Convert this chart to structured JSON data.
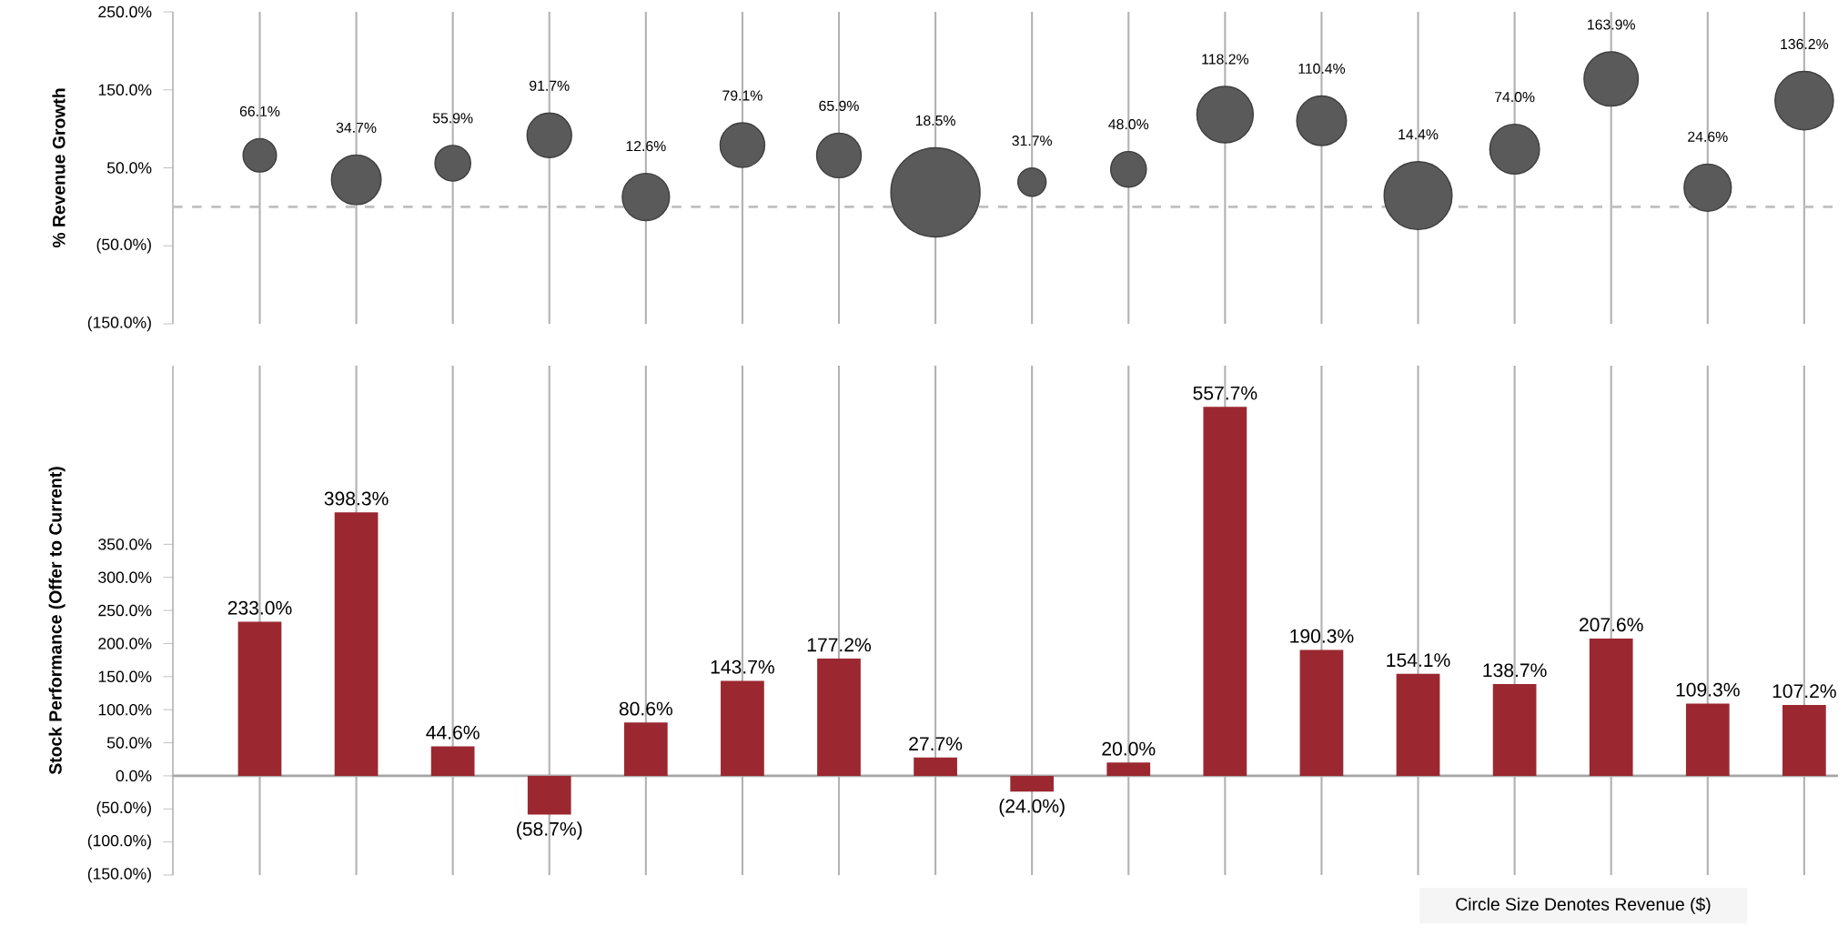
{
  "chart_data": [
    {
      "type": "bubble",
      "ylabel": "% Revenue Growth",
      "categories": [
        null,
        null,
        null,
        null,
        null,
        null,
        null,
        null,
        null,
        null,
        null,
        null,
        null,
        null,
        null,
        null,
        null
      ],
      "values": [
        66.1,
        34.7,
        55.9,
        91.7,
        12.6,
        79.1,
        65.9,
        18.5,
        31.7,
        48.0,
        118.2,
        110.4,
        14.4,
        74.0,
        163.9,
        24.6,
        136.2
      ],
      "sizes": [
        0.14,
        0.31,
        0.16,
        0.25,
        0.28,
        0.25,
        0.25,
        1,
        0.1,
        0.16,
        0.4,
        0.31,
        0.58,
        0.31,
        0.37,
        0.28,
        0.43
      ],
      "value_labels": [
        "66.1%",
        "34.7%",
        "55.9%",
        "91.7%",
        "12.6%",
        "79.1%",
        "65.9%",
        "18.5%",
        "31.7%",
        "48.0%",
        "118.2%",
        "110.4%",
        "14.4%",
        "74.0%",
        "163.9%",
        "24.6%",
        "136.2%"
      ],
      "color": "#5a5a5a",
      "ylim": [
        -150,
        250
      ],
      "yticks": [
        {
          "value": 250,
          "label": "250.0%"
        },
        {
          "value": 150,
          "label": "150.0%"
        },
        {
          "value": 50,
          "label": "50.0%"
        },
        {
          "value": -50,
          "label": "(50.0%)"
        },
        {
          "value": -150,
          "label": "(150.0%)"
        }
      ],
      "grid": "x",
      "ref_lines": [
        {
          "axis": "y",
          "value": 0,
          "color": "#bfbfbf",
          "line_style": "dashed"
        }
      ]
    },
    {
      "type": "bar",
      "ylabel": "Stock Performance (Offer to Current)",
      "categories": [
        null,
        null,
        null,
        null,
        null,
        null,
        null,
        null,
        null,
        null,
        null,
        null,
        null,
        null,
        null,
        null,
        null
      ],
      "values": [
        233.0,
        398.3,
        44.6,
        -58.7,
        80.6,
        143.7,
        177.2,
        27.7,
        -24.0,
        20.0,
        557.7,
        190.3,
        154.1,
        138.7,
        207.6,
        109.3,
        107.2
      ],
      "value_labels": [
        "233.0%",
        "398.3%",
        "44.6%",
        "(58.7%)",
        "80.6%",
        "143.7%",
        "177.2%",
        "27.7%",
        "(24.0%)",
        "20.0%",
        "557.7%",
        "190.3%",
        "154.1%",
        "138.7%",
        "207.6%",
        "109.3%",
        "107.2%"
      ],
      "color": "#9b2830",
      "ylim": [
        -150,
        620
      ],
      "yticks": [
        {
          "value": 350,
          "label": "350.0%"
        },
        {
          "value": 300,
          "label": "300.0%"
        },
        {
          "value": 250,
          "label": "250.0%"
        },
        {
          "value": 200,
          "label": "200.0%"
        },
        {
          "value": 150,
          "label": "150.0%"
        },
        {
          "value": 100,
          "label": "100.0%"
        },
        {
          "value": 50,
          "label": "50.0%"
        },
        {
          "value": 0,
          "label": "0.0%"
        },
        {
          "value": -50,
          "label": "(50.0%)"
        },
        {
          "value": -100,
          "label": "(100.0%)"
        },
        {
          "value": -150,
          "label": "(150.0%)"
        }
      ],
      "grid": "x",
      "ref_lines": [
        {
          "axis": "y",
          "value": 0,
          "color": "#a6a6a6",
          "line_style": "solid"
        }
      ],
      "annotations": [
        "Circle Size Denotes Revenue ($)"
      ]
    }
  ]
}
